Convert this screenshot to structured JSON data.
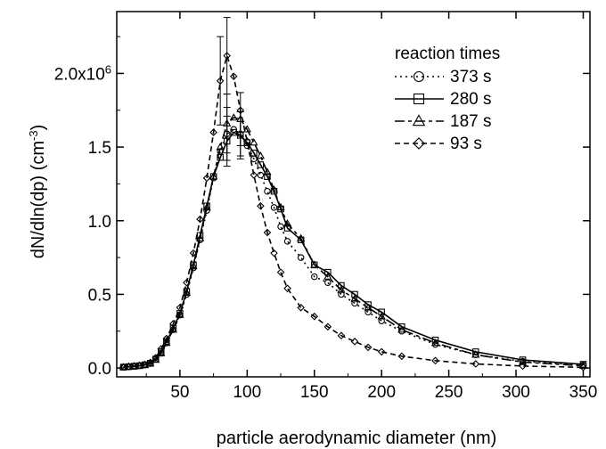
{
  "chart_data": {
    "type": "line",
    "xlabel": "particle aerodynamic diameter (nm)",
    "ylabel": {
      "main": "dN/dln(dp)  (cm",
      "exponent": "-3",
      "close": ")"
    },
    "xlim": [
      3,
      355
    ],
    "ylim": [
      -60000,
      2420000
    ],
    "x_ticks": [
      50,
      100,
      150,
      200,
      250,
      300,
      350
    ],
    "x_tick_labels": [
      "50",
      "100",
      "150",
      "200",
      "250",
      "300",
      "350"
    ],
    "y_ticks": [
      0,
      500000,
      1000000,
      1500000,
      2000000
    ],
    "y_tick_labels": [
      {
        "main": "0.0",
        "sup": ""
      },
      {
        "main": "0.5",
        "sup": ""
      },
      {
        "main": "1.0",
        "sup": ""
      },
      {
        "main": "1.5",
        "sup": ""
      },
      {
        "main": "2.0x10",
        "sup": "6"
      }
    ],
    "legend_title": "reaction times",
    "legend_position": "top-right",
    "series": [
      {
        "name": "373 s",
        "marker": "circle",
        "dash": "2,4",
        "x": [
          8,
          12,
          16,
          20,
          24,
          28,
          32,
          36,
          40,
          45,
          50,
          55,
          60,
          65,
          70,
          75,
          80,
          85,
          90,
          95,
          100,
          105,
          110,
          115,
          120,
          125,
          130,
          140,
          150,
          160,
          170,
          180,
          190,
          200,
          215,
          240,
          270,
          305,
          350
        ],
        "y": [
          5000,
          8000,
          10000,
          15000,
          20000,
          30000,
          60000,
          100000,
          170000,
          260000,
          360000,
          500000,
          680000,
          870000,
          1070000,
          1290000,
          1470000,
          1590000,
          1620000,
          1590000,
          1510000,
          1420000,
          1310000,
          1200000,
          1090000,
          960000,
          860000,
          750000,
          620000,
          580000,
          500000,
          440000,
          380000,
          320000,
          250000,
          160000,
          90000,
          45000,
          20000
        ],
        "errors": [
          {
            "x": 85,
            "y": 1590000,
            "err": 180000
          },
          {
            "x": 95,
            "y": 1590000,
            "err": 150000
          }
        ]
      },
      {
        "name": "280 s",
        "marker": "square",
        "dash": "",
        "x": [
          8,
          12,
          16,
          20,
          24,
          28,
          32,
          36,
          40,
          45,
          50,
          55,
          60,
          65,
          70,
          75,
          80,
          85,
          90,
          95,
          100,
          105,
          110,
          115,
          120,
          125,
          130,
          140,
          150,
          160,
          170,
          180,
          190,
          200,
          215,
          240,
          270,
          305,
          350
        ],
        "y": [
          6000,
          9000,
          12000,
          16000,
          22000,
          32000,
          60000,
          110000,
          180000,
          270000,
          370000,
          520000,
          700000,
          900000,
          1100000,
          1300000,
          1430000,
          1540000,
          1600000,
          1580000,
          1530000,
          1460000,
          1380000,
          1300000,
          1200000,
          1080000,
          950000,
          870000,
          700000,
          650000,
          560000,
          500000,
          430000,
          380000,
          280000,
          190000,
          110000,
          55000,
          25000
        ],
        "errors": [
          {
            "x": 85,
            "y": 1540000,
            "err": 170000
          },
          {
            "x": 95,
            "y": 1580000,
            "err": 160000
          }
        ]
      },
      {
        "name": "187 s",
        "marker": "triangle",
        "dash": "11,4,4,4",
        "x": [
          8,
          12,
          16,
          20,
          24,
          28,
          32,
          36,
          40,
          45,
          50,
          55,
          60,
          65,
          70,
          75,
          80,
          85,
          90,
          95,
          100,
          105,
          110,
          115,
          120,
          125,
          130,
          140,
          150,
          160,
          170,
          180,
          190,
          200,
          215,
          240,
          270,
          305,
          350
        ],
        "y": [
          5000,
          8000,
          11000,
          15000,
          21000,
          30000,
          55000,
          100000,
          170000,
          260000,
          360000,
          510000,
          690000,
          880000,
          1090000,
          1300000,
          1500000,
          1660000,
          1700000,
          1690000,
          1620000,
          1530000,
          1440000,
          1330000,
          1210000,
          1090000,
          980000,
          880000,
          700000,
          620000,
          530000,
          470000,
          410000,
          350000,
          260000,
          170000,
          90000,
          40000,
          15000
        ],
        "errors": [
          {
            "x": 85,
            "y": 1660000,
            "err": 200000
          },
          {
            "x": 95,
            "y": 1690000,
            "err": 180000
          }
        ]
      },
      {
        "name": "93 s",
        "marker": "diamond",
        "dash": "6,4",
        "x": [
          8,
          12,
          16,
          20,
          24,
          28,
          32,
          36,
          40,
          45,
          50,
          55,
          60,
          65,
          70,
          75,
          80,
          85,
          90,
          95,
          100,
          105,
          110,
          115,
          120,
          125,
          130,
          140,
          150,
          160,
          170,
          180,
          190,
          200,
          215,
          240,
          270,
          305,
          350
        ],
        "y": [
          7000,
          10000,
          14000,
          18000,
          24000,
          38000,
          70000,
          130000,
          200000,
          300000,
          410000,
          580000,
          780000,
          1010000,
          1290000,
          1600000,
          1950000,
          2120000,
          1980000,
          1750000,
          1540000,
          1310000,
          1100000,
          920000,
          780000,
          650000,
          540000,
          410000,
          350000,
          280000,
          220000,
          180000,
          140000,
          110000,
          80000,
          50000,
          28000,
          13000,
          5000
        ],
        "errors": [
          {
            "x": 85,
            "y": 2120000,
            "err": 260000
          },
          {
            "x": 80,
            "y": 1950000,
            "err": 300000
          }
        ]
      }
    ]
  }
}
